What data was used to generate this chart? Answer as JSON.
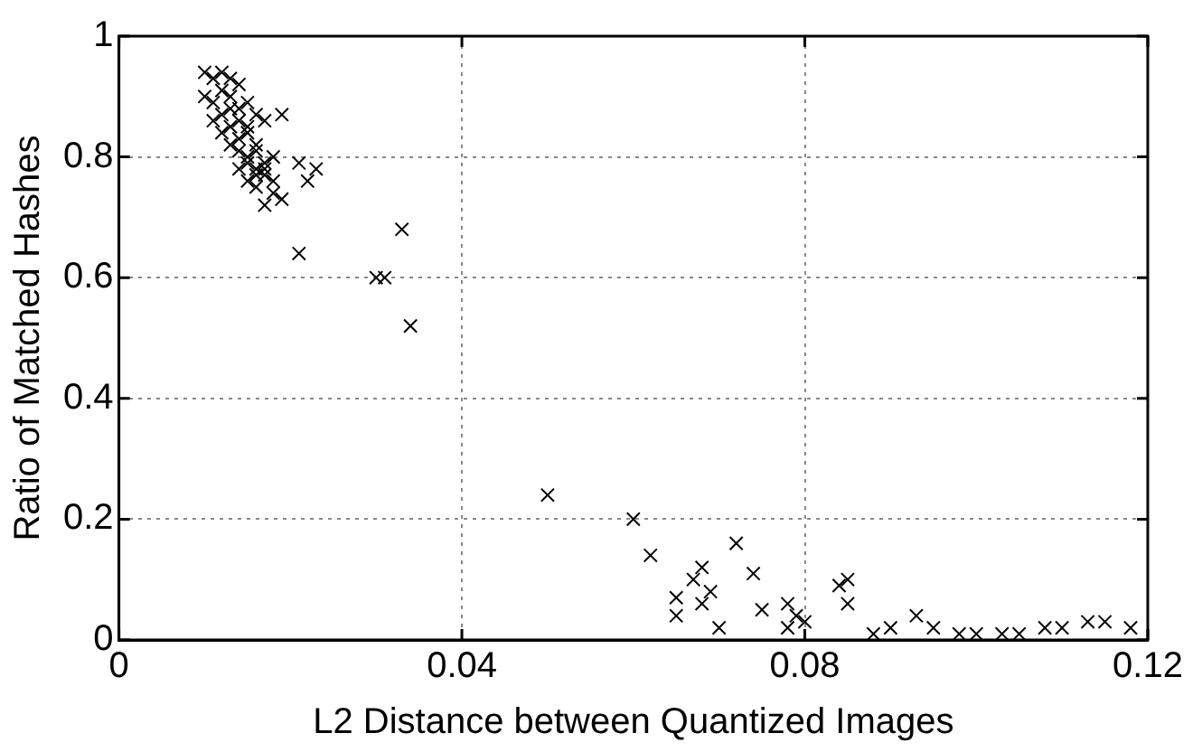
{
  "chart_data": {
    "type": "scatter",
    "xlabel": "L2 Distance between Quantized Images",
    "ylabel": "Ratio of Matched Hashes",
    "marker": "cross",
    "grid": true,
    "xlim": [
      0,
      0.12
    ],
    "xticks": [
      0,
      0.04,
      0.08,
      0.12
    ],
    "ylim": [
      0,
      1
    ],
    "yticks": [
      0,
      0.2,
      0.4,
      0.6,
      0.8,
      1
    ],
    "series": [
      {
        "color": "#000000",
        "x": [
          0.01,
          0.011,
          0.012,
          0.013,
          0.014,
          0.01,
          0.011,
          0.012,
          0.013,
          0.014,
          0.015,
          0.011,
          0.012,
          0.013,
          0.014,
          0.015,
          0.016,
          0.012,
          0.013,
          0.014,
          0.015,
          0.016,
          0.017,
          0.013,
          0.014,
          0.015,
          0.016,
          0.017,
          0.014,
          0.015,
          0.016,
          0.017,
          0.018,
          0.015,
          0.016,
          0.017,
          0.018,
          0.016,
          0.017,
          0.018,
          0.019,
          0.019,
          0.021,
          0.022,
          0.023,
          0.021,
          0.03,
          0.031,
          0.033,
          0.034,
          0.05,
          0.06,
          0.062,
          0.065,
          0.065,
          0.067,
          0.068,
          0.068,
          0.069,
          0.07,
          0.072,
          0.074,
          0.075,
          0.078,
          0.078,
          0.079,
          0.08,
          0.084,
          0.085,
          0.085,
          0.088,
          0.09,
          0.093,
          0.095,
          0.098,
          0.1,
          0.103,
          0.105,
          0.108,
          0.11,
          0.113,
          0.115,
          0.118
        ],
        "values": [
          0.94,
          0.93,
          0.94,
          0.93,
          0.92,
          0.9,
          0.89,
          0.91,
          0.9,
          0.88,
          0.89,
          0.86,
          0.87,
          0.88,
          0.86,
          0.85,
          0.87,
          0.84,
          0.85,
          0.83,
          0.84,
          0.82,
          0.86,
          0.82,
          0.81,
          0.8,
          0.81,
          0.79,
          0.78,
          0.79,
          0.78,
          0.77,
          0.8,
          0.76,
          0.75,
          0.78,
          0.74,
          0.77,
          0.72,
          0.76,
          0.73,
          0.87,
          0.79,
          0.76,
          0.78,
          0.64,
          0.6,
          0.6,
          0.68,
          0.52,
          0.24,
          0.2,
          0.14,
          0.07,
          0.04,
          0.1,
          0.12,
          0.06,
          0.08,
          0.02,
          0.16,
          0.11,
          0.05,
          0.06,
          0.02,
          0.04,
          0.03,
          0.09,
          0.06,
          0.1,
          0.01,
          0.02,
          0.04,
          0.02,
          0.01,
          0.01,
          0.01,
          0.01,
          0.02,
          0.02,
          0.03,
          0.03,
          0.02
        ]
      }
    ]
  }
}
